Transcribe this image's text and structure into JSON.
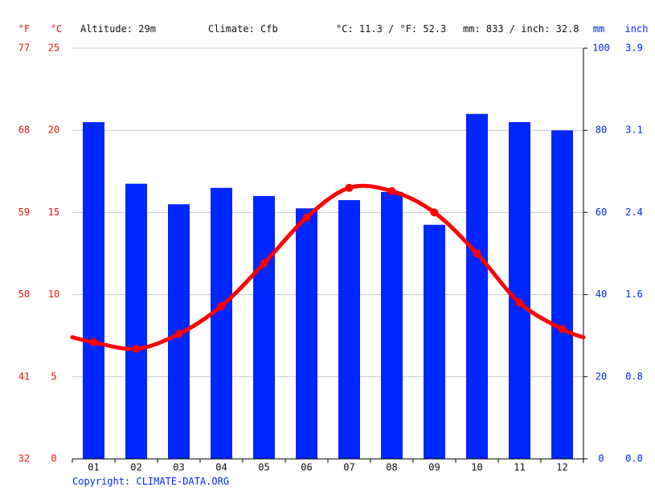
{
  "header": {
    "unit_f": "°F",
    "unit_c": "°C",
    "altitude": "Altitude: 29m",
    "climate": "Climate: Cfb",
    "temperature_avg": "°C: 11.3 / °F: 52.3",
    "precipitation_total": "mm: 833 / inch: 32.8",
    "unit_mm": "mm",
    "unit_inch": "inch"
  },
  "footer": {
    "copyright": "Copyright: CLIMATE-DATA.ORG"
  },
  "colors": {
    "temperature": "#ff0000",
    "precipitation": "#0026ff",
    "grid": "#c8c8c8",
    "axis": "#000000"
  },
  "chart_data": {
    "type": "bar",
    "categories": [
      "01",
      "02",
      "03",
      "04",
      "05",
      "06",
      "07",
      "08",
      "09",
      "10",
      "11",
      "12"
    ],
    "series": [
      {
        "type": "bar",
        "axis": "right",
        "values": [
          82,
          67,
          62,
          66,
          64,
          61,
          63,
          65,
          57,
          84,
          82,
          80
        ]
      },
      {
        "type": "line",
        "axis": "left",
        "values": [
          7.1,
          6.7,
          7.6,
          9.3,
          11.9,
          14.7,
          16.5,
          16.3,
          15.0,
          12.5,
          9.5,
          7.9
        ],
        "edge_start": 7.4,
        "edge_end": 7.4
      }
    ],
    "left_axis_c": {
      "ylim": [
        0,
        25
      ],
      "ticks": [
        0,
        5,
        10,
        15,
        20,
        25
      ]
    },
    "left_axis_f": {
      "ticks": [
        32,
        41,
        50,
        59,
        68,
        77
      ]
    },
    "right_axis_mm": {
      "ylim": [
        0,
        100
      ],
      "ticks": [
        0,
        20,
        40,
        60,
        80,
        100
      ]
    },
    "right_axis_inch": {
      "ticks": [
        "0.0",
        "0.8",
        "1.6",
        "2.4",
        "3.1",
        "3.9"
      ]
    },
    "grid": true
  }
}
